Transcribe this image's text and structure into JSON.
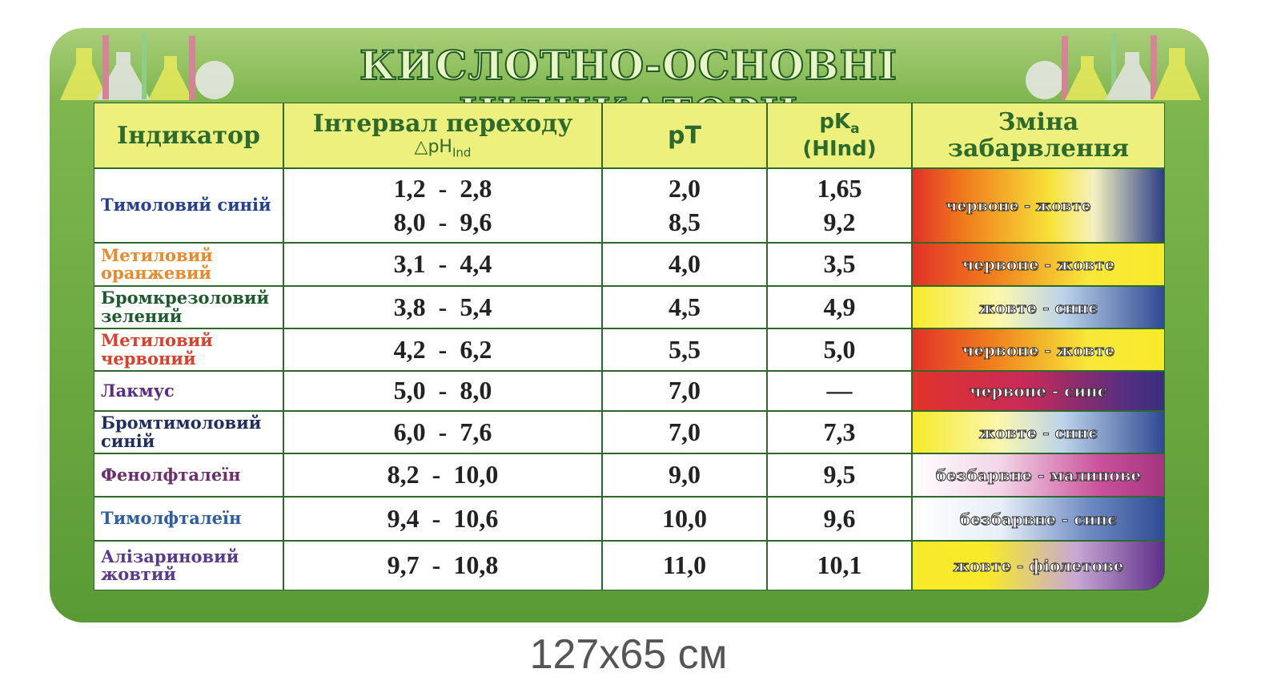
{
  "title": "КИСЛОТНО-ОСНОВНІ  ІНДИКАТОРИ",
  "table": {
    "header": {
      "indicator": "Індикатор",
      "interval": {
        "text": "Інтервал переходу",
        "symbol": "△pH",
        "subscript": "Ind"
      },
      "pT": "pT",
      "pKa": {
        "text": "pK",
        "subscript": "a",
        "suffix": "(HInd)"
      },
      "change": "Зміна забарвлення"
    },
    "rows": [
      {
        "name": "Тимоловий синій",
        "interval": [
          "1,2  -  2,8",
          "8,0  -  9,6"
        ],
        "pT": [
          "2,0",
          "8,5"
        ],
        "pKa": [
          "1,65",
          "9,2"
        ],
        "change": "червоне - жовте"
      },
      {
        "name": "Метиловий оранжевий",
        "interval": [
          "3,1  -  4,4"
        ],
        "pT": [
          "4,0"
        ],
        "pKa": [
          "3,5"
        ],
        "change": "червоне - жовте"
      },
      {
        "name": "Бромкрезоловий зелений",
        "interval": [
          "3,8  -  5,4"
        ],
        "pT": [
          "4,5"
        ],
        "pKa": [
          "4,9"
        ],
        "change": "жовте - синє"
      },
      {
        "name": "Метиловий червоний",
        "interval": [
          "4,2  -  6,2"
        ],
        "pT": [
          "5,5"
        ],
        "pKa": [
          "5,0"
        ],
        "change": "червоне - жовте"
      },
      {
        "name": "Лакмус",
        "interval": [
          "5,0  -  8,0"
        ],
        "pT": [
          "7,0"
        ],
        "pKa": [
          "—"
        ],
        "change": "червоне - синє"
      },
      {
        "name": "Бромтимоловий синій",
        "interval": [
          "6,0  -  7,6"
        ],
        "pT": [
          "7,0"
        ],
        "pKa": [
          "7,3"
        ],
        "change": "жовте - синє"
      },
      {
        "name": "Фенолфталеїн",
        "interval": [
          "8,2  -  10,0"
        ],
        "pT": [
          "9,0"
        ],
        "pKa": [
          "9,5"
        ],
        "change": "безбарвне - малинове"
      },
      {
        "name": "Тимолфталеїн",
        "interval": [
          "9,4  -  10,6"
        ],
        "pT": [
          "10,0"
        ],
        "pKa": [
          "9,6"
        ],
        "change": "безбарвне - синє"
      },
      {
        "name": "Алізариновий жовтий",
        "interval": [
          "9,7  -  10,8"
        ],
        "pT": [
          "11,0"
        ],
        "pKa": [
          "10,1"
        ],
        "change": "жовте - фіолетове"
      }
    ]
  },
  "footer": "127x65 см"
}
